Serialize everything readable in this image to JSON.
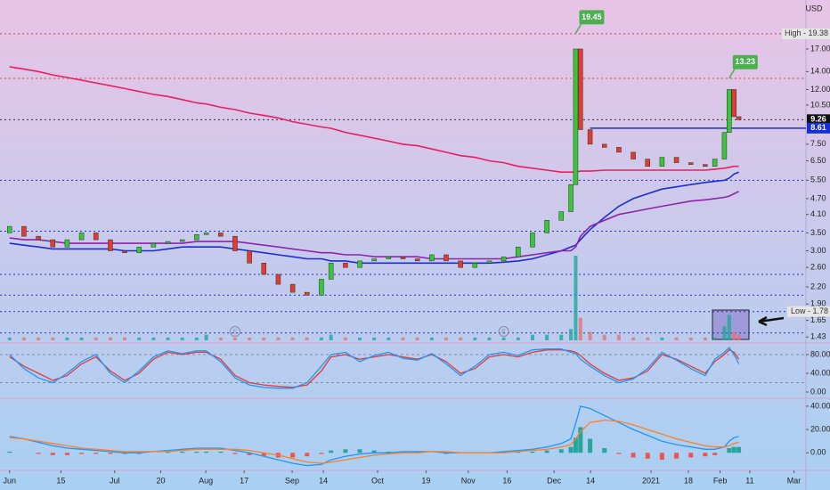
{
  "chart_data": [
    {
      "type": "candlestick",
      "currency": "USD",
      "log_scale": true,
      "xlim": [
        -2,
        166
      ],
      "ylim": [
        1.39,
        25.9
      ],
      "yticks": [
        {
          "value": 17,
          "label": "17.00"
        },
        {
          "value": 14,
          "label": "14.00"
        },
        {
          "value": 12,
          "label": "12.00"
        },
        {
          "value": 10.5,
          "label": "10.50"
        },
        {
          "value": 7.5,
          "label": "7.50"
        },
        {
          "value": 6.5,
          "label": "6.50"
        },
        {
          "value": 5.5,
          "label": "5.50"
        },
        {
          "value": 4.7,
          "label": "4.70"
        },
        {
          "value": 4.1,
          "label": "4.10"
        },
        {
          "value": 3.5,
          "label": "3.50"
        },
        {
          "value": 3,
          "label": "3.00"
        },
        {
          "value": 2.6,
          "label": "2.60"
        },
        {
          "value": 2.2,
          "label": "2.20"
        },
        {
          "value": 1.9,
          "label": "1.90"
        },
        {
          "value": 1.65,
          "label": "1.65"
        },
        {
          "value": 1.43,
          "label": "1.43"
        }
      ],
      "x": [
        0,
        3,
        6,
        9,
        12,
        15,
        18,
        21,
        24,
        27,
        30,
        33,
        36,
        39,
        41,
        44,
        47,
        50,
        53,
        56,
        59,
        62,
        65,
        67,
        70,
        73,
        76,
        79,
        82,
        85,
        88,
        91,
        94,
        97,
        100,
        103,
        106,
        109,
        112,
        115,
        117,
        118,
        119,
        121,
        124,
        127,
        130,
        133,
        136,
        139,
        142,
        145,
        147,
        149,
        150,
        151,
        152
      ],
      "open": [
        3.5,
        3.7,
        3.4,
        3.3,
        3.1,
        3.3,
        3.5,
        3.3,
        3.0,
        2.95,
        3.1,
        3.2,
        3.25,
        3.3,
        3.45,
        3.5,
        3.4,
        3.0,
        2.7,
        2.45,
        2.25,
        2.1,
        2.05,
        2.35,
        2.7,
        2.6,
        2.75,
        2.8,
        2.85,
        2.8,
        2.75,
        2.9,
        2.75,
        2.6,
        2.7,
        2.75,
        2.85,
        3.1,
        3.5,
        3.9,
        4.2,
        5.3,
        17.0,
        8.5,
        7.5,
        7.3,
        7.0,
        6.6,
        6.2,
        6.7,
        6.4,
        6.3,
        6.2,
        6.6,
        8.3,
        12.0,
        9.5
      ],
      "high": {
        "value": 19.38,
        "label": "High - 19.38"
      },
      "low": {
        "value": 1.78,
        "label": "Low - 1.78"
      },
      "close": [
        3.7,
        3.4,
        3.3,
        3.1,
        3.3,
        3.5,
        3.3,
        3.0,
        2.95,
        3.1,
        3.2,
        3.25,
        3.3,
        3.45,
        3.5,
        3.4,
        3.0,
        2.7,
        2.45,
        2.25,
        2.1,
        2.05,
        2.35,
        2.7,
        2.6,
        2.75,
        2.8,
        2.85,
        2.8,
        2.75,
        2.9,
        2.75,
        2.6,
        2.7,
        2.75,
        2.85,
        3.1,
        3.5,
        3.9,
        4.2,
        5.3,
        17.0,
        8.5,
        7.5,
        7.3,
        7.0,
        6.6,
        6.2,
        6.7,
        6.4,
        6.3,
        6.2,
        6.6,
        8.3,
        12.0,
        9.5,
        9.26
      ],
      "up_color": "#3cc43c",
      "down_color": "#e53935",
      "volume": [
        1,
        1,
        1,
        1,
        1,
        1,
        1,
        1,
        1,
        1,
        1,
        1,
        1,
        1,
        2,
        1,
        1,
        1,
        1,
        1,
        1,
        1,
        1,
        2,
        1,
        1,
        1,
        1,
        1,
        1,
        1,
        1,
        1,
        1,
        1,
        1,
        1,
        2,
        2,
        2,
        4,
        30,
        8,
        3,
        2,
        2,
        1,
        1,
        1,
        1,
        1,
        1,
        1,
        5,
        9,
        3,
        2
      ],
      "lines": [
        {
          "color": "#e91e63",
          "values": [
            14.6,
            14.3,
            14.0,
            13.6,
            13.3,
            13.0,
            12.7,
            12.4,
            12.1,
            11.8,
            11.5,
            11.3,
            11.0,
            10.7,
            10.6,
            10.3,
            10.1,
            9.8,
            9.6,
            9.4,
            9.1,
            8.9,
            8.7,
            8.6,
            8.3,
            8.1,
            7.9,
            7.7,
            7.5,
            7.4,
            7.2,
            7.0,
            6.8,
            6.7,
            6.5,
            6.4,
            6.2,
            6.1,
            6.0,
            5.9,
            5.9,
            5.9,
            5.95,
            5.95,
            6.0,
            6.0,
            6.0,
            6.0,
            6.0,
            6.0,
            6.0,
            6.0,
            6.05,
            6.1,
            6.15,
            6.2,
            6.2
          ]
        },
        {
          "color": "#1a2fcf",
          "values": [
            3.2,
            3.15,
            3.1,
            3.05,
            3.05,
            3.05,
            3.05,
            3.05,
            3.0,
            3.0,
            3.0,
            3.05,
            3.1,
            3.1,
            3.1,
            3.1,
            3.05,
            3.0,
            2.95,
            2.9,
            2.85,
            2.8,
            2.8,
            2.75,
            2.75,
            2.7,
            2.7,
            2.7,
            2.7,
            2.7,
            2.7,
            2.7,
            2.7,
            2.7,
            2.7,
            2.72,
            2.75,
            2.8,
            2.9,
            3.0,
            3.1,
            3.15,
            3.3,
            3.6,
            4.0,
            4.4,
            4.7,
            4.9,
            5.1,
            5.2,
            5.3,
            5.4,
            5.45,
            5.5,
            5.6,
            5.8,
            5.9
          ]
        },
        {
          "color": "#8e24aa",
          "values": [
            3.35,
            3.3,
            3.3,
            3.25,
            3.2,
            3.2,
            3.2,
            3.2,
            3.2,
            3.2,
            3.2,
            3.2,
            3.2,
            3.25,
            3.25,
            3.25,
            3.25,
            3.2,
            3.15,
            3.1,
            3.05,
            3.0,
            2.95,
            2.95,
            2.9,
            2.9,
            2.85,
            2.85,
            2.85,
            2.85,
            2.8,
            2.8,
            2.8,
            2.8,
            2.8,
            2.8,
            2.85,
            2.9,
            2.95,
            3.0,
            3.0,
            3.1,
            3.4,
            3.7,
            3.9,
            4.1,
            4.2,
            4.3,
            4.4,
            4.5,
            4.6,
            4.65,
            4.7,
            4.75,
            4.8,
            4.9,
            5.0
          ]
        }
      ],
      "levels": [
        {
          "value": 19.38,
          "color": "#e53935"
        },
        {
          "value": 13.2,
          "color": "#e53935"
        },
        {
          "value": 9.26,
          "color": "#333333"
        },
        {
          "value": 5.5,
          "color": "#1a2fcf"
        },
        {
          "value": 3.55,
          "color": "#1a2fcf"
        },
        {
          "value": 2.45,
          "color": "#1a2fcf"
        },
        {
          "value": 2.05,
          "color": "#1a2fcf"
        },
        {
          "value": 1.78,
          "color": "#1a2fcf"
        },
        {
          "value": 1.48,
          "color": "#1a2fcf"
        }
      ],
      "tags": [
        {
          "x": 118,
          "value": 19.45
        },
        {
          "x": 150,
          "value": 13.23
        }
      ],
      "last_price": 9.26,
      "support": 8.61,
      "event_markers": [
        {
          "x": 47,
          "label": "E"
        },
        {
          "x": 103,
          "label": "E"
        }
      ]
    },
    {
      "type": "line",
      "ylim": [
        -9.5,
        99
      ],
      "yticks": [
        {
          "value": 80,
          "label": "80.00"
        },
        {
          "value": 40,
          "label": "40.00"
        },
        {
          "value": 0,
          "label": "0.00"
        }
      ],
      "bands": [
        80,
        20
      ],
      "series": [
        {
          "color": "#e53935",
          "values": [
            75,
            55,
            40,
            25,
            35,
            60,
            75,
            45,
            25,
            40,
            70,
            85,
            80,
            85,
            85,
            70,
            35,
            20,
            15,
            12,
            10,
            15,
            45,
            75,
            80,
            70,
            75,
            80,
            75,
            70,
            80,
            65,
            40,
            50,
            75,
            80,
            75,
            85,
            90,
            90,
            88,
            85,
            78,
            60,
            40,
            25,
            30,
            45,
            80,
            70,
            55,
            40,
            65,
            80,
            90,
            85,
            70
          ]
        },
        {
          "color": "#2196f3",
          "values": [
            80,
            50,
            30,
            20,
            40,
            65,
            80,
            40,
            20,
            45,
            75,
            88,
            82,
            88,
            88,
            65,
            30,
            15,
            10,
            8,
            8,
            20,
            55,
            80,
            85,
            65,
            78,
            85,
            72,
            68,
            82,
            60,
            35,
            55,
            80,
            85,
            78,
            90,
            92,
            92,
            85,
            82,
            70,
            55,
            35,
            20,
            28,
            50,
            85,
            68,
            50,
            35,
            70,
            85,
            95,
            80,
            60
          ]
        }
      ]
    },
    {
      "type": "line",
      "ylim": [
        -12.8,
        45.3
      ],
      "xlim": [
        -2,
        166
      ],
      "yticks": [
        {
          "value": 40,
          "label": "40.00"
        },
        {
          "value": 20,
          "label": "20.00"
        },
        {
          "value": 0,
          "label": "0.00"
        }
      ],
      "xticks": [
        {
          "value": 0,
          "label": "Jun"
        },
        {
          "value": 10.7,
          "label": "15"
        },
        {
          "value": 21.9,
          "label": "Jul"
        },
        {
          "value": 31.5,
          "label": "20"
        },
        {
          "value": 40.9,
          "label": "Aug"
        },
        {
          "value": 48.9,
          "label": "17"
        },
        {
          "value": 58.9,
          "label": "Sep"
        },
        {
          "value": 65.4,
          "label": "14"
        },
        {
          "value": 76.7,
          "label": "Oct"
        },
        {
          "value": 86.8,
          "label": "19"
        },
        {
          "value": 95.6,
          "label": "Nov"
        },
        {
          "value": 103.7,
          "label": "16"
        },
        {
          "value": 113.5,
          "label": "Dec"
        },
        {
          "value": 121.1,
          "label": "14"
        },
        {
          "value": 133.7,
          "label": "2021"
        },
        {
          "value": 141.5,
          "label": "18"
        },
        {
          "value": 148.1,
          "label": "Feb"
        },
        {
          "value": 154.3,
          "label": "11"
        },
        {
          "value": 163.5,
          "label": "Mar"
        }
      ],
      "series": [
        {
          "color": "#2196f3",
          "values": [
            14,
            12,
            9,
            6,
            4,
            3,
            2,
            1,
            0,
            0,
            1,
            2,
            3,
            4,
            4,
            4,
            2,
            0,
            -3,
            -6,
            -9,
            -11,
            -10,
            -6,
            -3,
            -1,
            0,
            0,
            1,
            1,
            1,
            0,
            0,
            0,
            0,
            1,
            2,
            3,
            5,
            8,
            12,
            25,
            40,
            38,
            32,
            26,
            20,
            15,
            10,
            7,
            5,
            3,
            3,
            5,
            10,
            13,
            14
          ]
        },
        {
          "color": "#ff7f27",
          "values": [
            13,
            12,
            10,
            8,
            6,
            4,
            3,
            2,
            1,
            1,
            1,
            1,
            2,
            3,
            3,
            3,
            3,
            2,
            0,
            -2,
            -5,
            -8,
            -9,
            -8,
            -6,
            -4,
            -2,
            -1,
            0,
            0,
            1,
            1,
            0,
            0,
            0,
            0,
            1,
            2,
            3,
            5,
            7,
            12,
            18,
            26,
            28,
            27,
            24,
            20,
            16,
            12,
            9,
            6,
            5,
            5,
            6,
            8,
            9
          ]
        }
      ],
      "histogram": {
        "up_color": "#26a69a",
        "down_color": "#ef5350",
        "values": [
          1,
          0,
          -1,
          -2,
          -2,
          -1,
          -1,
          -1,
          -1,
          -1,
          0,
          1,
          1,
          1,
          1,
          1,
          -1,
          -2,
          -3,
          -4,
          -4,
          -3,
          -1,
          2,
          3,
          3,
          2,
          1,
          1,
          1,
          0,
          -1,
          0,
          0,
          0,
          1,
          1,
          1,
          2,
          3,
          5,
          13,
          22,
          12,
          4,
          -1,
          -4,
          -5,
          -6,
          -5,
          -4,
          -3,
          -2,
          0,
          4,
          5,
          5
        ]
      }
    }
  ]
}
